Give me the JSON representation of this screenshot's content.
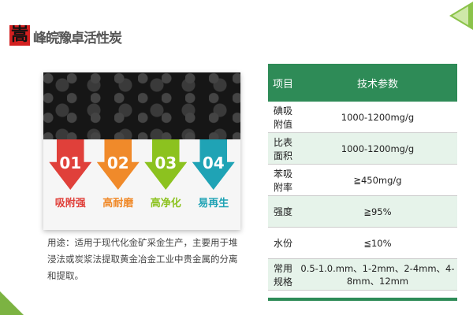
{
  "brand": {
    "logo_char": "嵩",
    "title": "峰皖豫卓活性炭"
  },
  "features": [
    {
      "num": "01",
      "label": "吸附强",
      "color": "#e0403a"
    },
    {
      "num": "02",
      "label": "高耐磨",
      "color": "#f08a2a"
    },
    {
      "num": "03",
      "label": "高净化",
      "color": "#8cc21f"
    },
    {
      "num": "04",
      "label": "易再生",
      "color": "#1fa3b5"
    }
  ],
  "usage": "用途：适用于现代化金矿采金生产，主要用于堆浸法或炭浆法提取黄金冶金工业中贵金属的分离和提取。",
  "table": {
    "headers": [
      "项目",
      "技术参数"
    ],
    "rows": [
      [
        "碘吸附值",
        "1000-1200mg/g"
      ],
      [
        "比表面积",
        "1000-1200mg/g"
      ],
      [
        "苯吸附率",
        "≧450mg/g"
      ],
      [
        "强度",
        "≧95%"
      ],
      [
        "水份",
        "≦10%"
      ],
      [
        "常用规格",
        "0.5-1.0.mm、1-2mm、2-4mm、4-8mm、12mm"
      ]
    ]
  }
}
